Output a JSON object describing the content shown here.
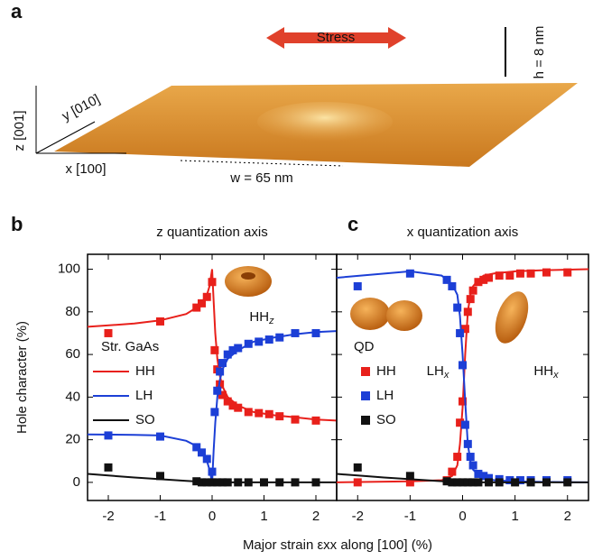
{
  "panel_a": {
    "panel": "a",
    "stress": "Stress",
    "height": "h = 8 nm",
    "width": "w = 65 nm",
    "z_axis": "z [001]",
    "y_axis": "y [010]",
    "x_axis": "x [100]"
  },
  "chart_data": [
    {
      "type": "scatter",
      "panel": "b",
      "title": "z quantization axis",
      "ylabel": "Hole character (%)",
      "xlabel": "Major strain εxx along [100] (%)",
      "legend_title": "Str. GaAs",
      "legend_style": "line",
      "annotations": [
        {
          "text": "HH",
          "sub": "z"
        }
      ],
      "xlim": [
        -2.4,
        2.4
      ],
      "ylim": [
        -8.5,
        107
      ],
      "xticks": [
        -2,
        -1,
        0,
        1,
        2
      ],
      "yticks": [
        0,
        20,
        40,
        60,
        80,
        100
      ],
      "series": [
        {
          "name": "HH",
          "color": "#e8201b",
          "x": [
            -2,
            -1,
            -0.3,
            -0.2,
            -0.1,
            0,
            0.05,
            0.1,
            0.15,
            0.2,
            0.3,
            0.4,
            0.5,
            0.7,
            0.9,
            1.1,
            1.3,
            1.6,
            2
          ],
          "values": [
            70,
            75.5,
            82,
            84,
            87,
            94,
            62,
            53,
            46,
            41,
            38,
            36,
            35,
            33,
            32.5,
            32,
            31,
            29.5,
            29
          ],
          "fit_x": [
            -2.4,
            -1.5,
            -1,
            -0.5,
            -0.3,
            -0.2,
            -0.1,
            -0.05,
            0,
            0.03,
            0.06,
            0.1,
            0.15,
            0.2,
            0.3,
            0.5,
            0.8,
            1.2,
            1.6,
            2,
            2.4
          ],
          "fit_values": [
            73,
            74.5,
            76,
            79,
            82,
            84.5,
            88,
            92,
            100,
            85,
            70,
            58,
            50,
            45,
            40,
            36,
            33,
            31.5,
            30.5,
            29.5,
            29
          ]
        },
        {
          "name": "LH",
          "color": "#1c3fd6",
          "x": [
            -2,
            -1,
            -0.3,
            -0.2,
            -0.1,
            0,
            0.05,
            0.1,
            0.15,
            0.2,
            0.3,
            0.4,
            0.5,
            0.7,
            0.9,
            1.1,
            1.3,
            1.6,
            2
          ],
          "values": [
            22,
            21.5,
            16.5,
            14,
            11,
            5,
            33,
            43,
            52,
            56,
            60,
            62,
            63,
            65,
            66,
            67,
            68,
            70,
            70
          ],
          "fit_x": [
            -2.4,
            -1.5,
            -1,
            -0.5,
            -0.3,
            -0.2,
            -0.1,
            -0.05,
            0,
            0.03,
            0.06,
            0.1,
            0.15,
            0.2,
            0.3,
            0.5,
            0.8,
            1.2,
            1.6,
            2,
            2.4
          ],
          "fit_values": [
            22.5,
            22.3,
            22,
            19.5,
            17,
            14.5,
            10,
            6,
            0,
            15,
            28,
            40,
            48,
            53,
            58,
            62,
            66,
            68,
            69.5,
            70.5,
            71
          ]
        },
        {
          "name": "SO",
          "color": "#111111",
          "x": [
            -2,
            -1,
            -0.3,
            -0.2,
            -0.1,
            0,
            0.1,
            0.2,
            0.3,
            0.5,
            0.7,
            1,
            1.3,
            1.6,
            2
          ],
          "values": [
            7,
            3,
            0.5,
            0,
            0,
            0,
            0,
            0,
            0,
            0,
            0,
            0,
            0,
            0,
            0
          ],
          "fit_x": [
            -2.4,
            -2,
            -1.5,
            -1,
            -0.5,
            0,
            0.5,
            1,
            1.5,
            2,
            2.4
          ],
          "fit_values": [
            4,
            3.2,
            2.3,
            1.5,
            0.7,
            0,
            0,
            0,
            0,
            0,
            0
          ]
        }
      ]
    },
    {
      "type": "scatter",
      "panel": "c",
      "title": "x quantization axis",
      "legend_title": "QD",
      "legend_style": "marker",
      "annotations": [
        {
          "text": "LH",
          "sub": "x"
        },
        {
          "text": "HH",
          "sub": "x"
        }
      ],
      "xlim": [
        -2.4,
        2.4
      ],
      "ylim": [
        -8.5,
        107
      ],
      "xticks": [
        -2,
        -1,
        0,
        1,
        2
      ],
      "yticks": [
        0,
        20,
        40,
        60,
        80,
        100
      ],
      "series": [
        {
          "name": "HH",
          "color": "#e8201b",
          "x": [
            -2,
            -1,
            -0.3,
            -0.2,
            -0.1,
            -0.05,
            0,
            0.05,
            0.1,
            0.15,
            0.2,
            0.3,
            0.4,
            0.5,
            0.7,
            0.9,
            1.1,
            1.3,
            1.6,
            2
          ],
          "values": [
            0,
            0,
            1,
            5,
            12,
            28,
            38,
            72,
            80,
            86,
            90,
            94,
            95,
            96,
            97,
            97,
            98,
            98,
            98.5,
            98.5
          ],
          "fit_x": [
            -2.4,
            -1,
            -0.4,
            -0.2,
            -0.1,
            -0.05,
            0,
            0.05,
            0.1,
            0.15,
            0.2,
            0.3,
            0.4,
            0.6,
            1,
            1.5,
            2.4
          ],
          "fit_values": [
            0,
            0.5,
            1,
            3,
            8,
            18,
            35,
            60,
            80,
            88,
            92,
            95,
            97,
            98,
            99,
            99.5,
            100
          ]
        },
        {
          "name": "LH",
          "color": "#1c3fd6",
          "x": [
            -2,
            -1,
            -0.3,
            -0.2,
            -0.1,
            -0.05,
            0,
            0.05,
            0.1,
            0.15,
            0.2,
            0.3,
            0.4,
            0.5,
            0.7,
            0.9,
            1.1,
            1.3,
            1.6,
            2
          ],
          "values": [
            92,
            98,
            95,
            92,
            82,
            70,
            55,
            27,
            18,
            12,
            8,
            4,
            3,
            2,
            1.5,
            1,
            1,
            1,
            1,
            1
          ],
          "fit_x": [
            -2.4,
            -1,
            -0.4,
            -0.2,
            -0.1,
            -0.05,
            0,
            0.05,
            0.1,
            0.15,
            0.2,
            0.3,
            0.4,
            0.6,
            1,
            1.5,
            2.4
          ],
          "fit_values": [
            96,
            99,
            97,
            93,
            88,
            78,
            60,
            38,
            18,
            10,
            6,
            3.5,
            2,
            1,
            0.5,
            0.2,
            0
          ]
        },
        {
          "name": "SO",
          "color": "#111111",
          "x": [
            -2,
            -1,
            -0.3,
            -0.2,
            -0.1,
            0,
            0.1,
            0.2,
            0.3,
            0.5,
            0.7,
            1,
            1.3,
            1.6,
            2
          ],
          "values": [
            7,
            3,
            0.5,
            0,
            0,
            0,
            0,
            0,
            0,
            0,
            0,
            0,
            0,
            0,
            0
          ],
          "fit_x": [
            -2.4,
            -2,
            -1.5,
            -1,
            -0.5,
            0,
            0.5,
            1,
            1.5,
            2,
            2.4
          ],
          "fit_values": [
            4,
            3.2,
            2.3,
            1.5,
            0.7,
            0,
            0,
            0,
            0,
            0,
            0
          ]
        }
      ]
    }
  ]
}
